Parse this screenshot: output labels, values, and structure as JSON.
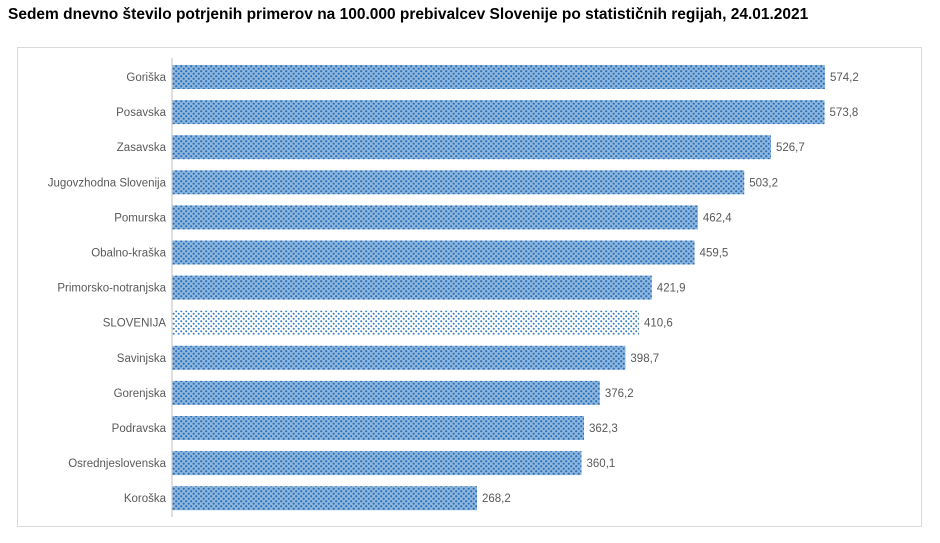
{
  "chart_data": {
    "type": "bar",
    "orientation": "horizontal",
    "title": "Sedem dnevno število potrjenih primerov na 100.000  prebivalcev Slovenije po statističnih regijah, 24.01.2021",
    "categories": [
      "Goriška",
      "Posavska",
      "Zasavska",
      "Jugovzhodna Slovenija",
      "Pomurska",
      "Obalno-kraška",
      "Primorsko-notranjska",
      "SLOVENIJA",
      "Savinjska",
      "Gorenjska",
      "Podravska",
      "Osrednjeslovenska",
      "Koroška"
    ],
    "values": [
      574.2,
      573.8,
      526.7,
      503.2,
      462.4,
      459.5,
      421.9,
      410.6,
      398.7,
      376.2,
      362.3,
      360.1,
      268.2
    ],
    "labels": [
      "574,2",
      "573,8",
      "526,7",
      "503,2",
      "462,4",
      "459,5",
      "421,9",
      "410,6",
      "398,7",
      "376,2",
      "362,3",
      "360,1",
      "268,2"
    ],
    "highlight": "SLOVENIJA",
    "xlim": [
      0,
      600
    ],
    "grid": false,
    "colors": {
      "bar_fill": "#8fb8e0",
      "bar_dots": "#2e6fb4",
      "highlight_fill": "#ffffff",
      "highlight_dots": "#3a7cc0",
      "label": "#595959"
    }
  }
}
